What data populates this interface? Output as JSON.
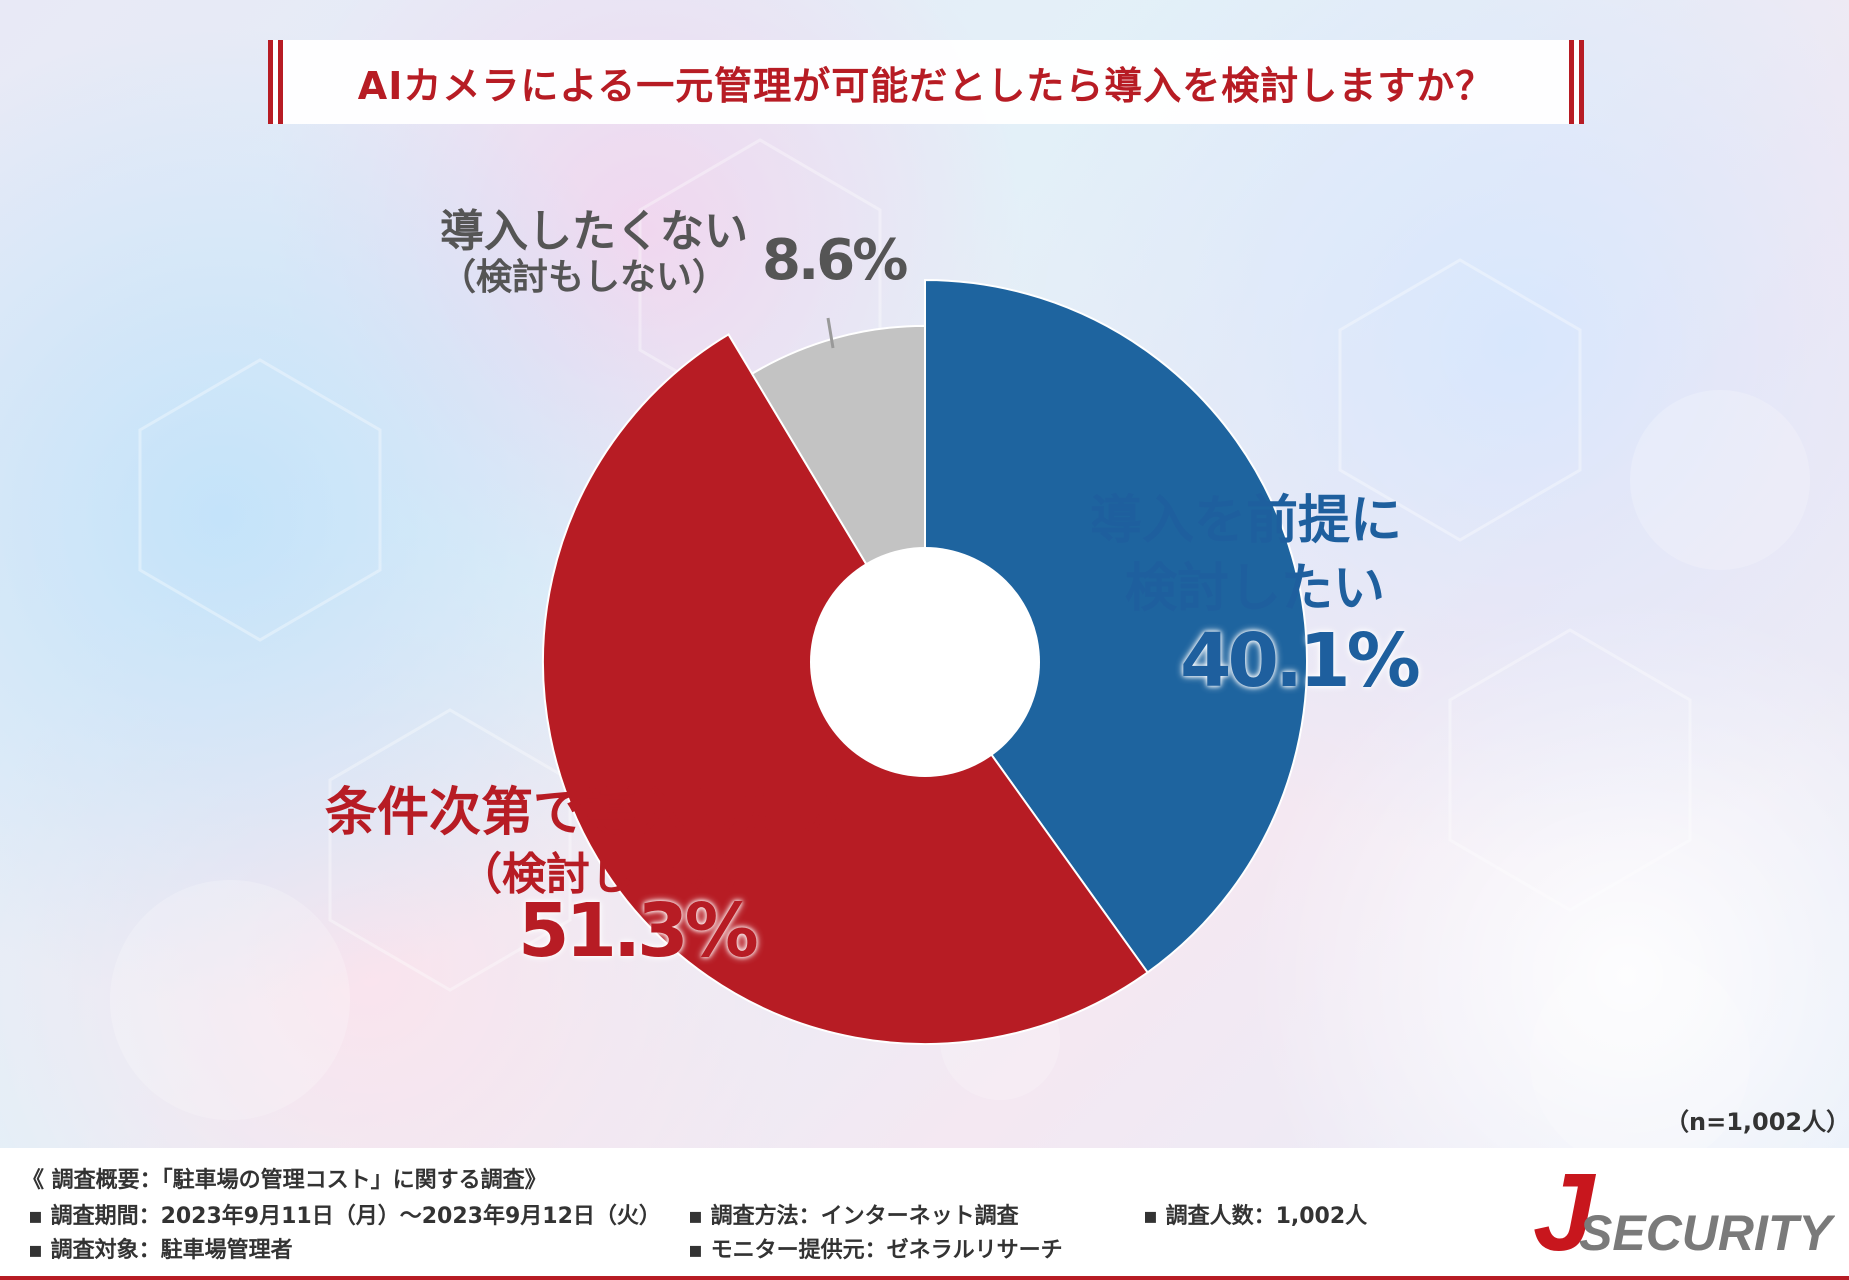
{
  "title": "AIカメラによる一元管理が可能だとしたら導入を検討しますか？",
  "chart_data": {
    "type": "pie",
    "donut": true,
    "categories": [
      "導入を前提に検討したい",
      "条件次第で導入したい（検討したい）",
      "導入したくない（検討もしない）"
    ],
    "values": [
      40.1,
      51.3,
      8.6
    ],
    "colors": [
      "#1e649f",
      "#b71c24",
      "#c3c3c3"
    ],
    "start_angle_deg": 0,
    "direction": "clockwise"
  },
  "labels": {
    "no_line1": "導入したくない",
    "no_line2": "（検討もしない）",
    "no_pct": "8.6%",
    "pre_line1": "導入を前提に",
    "pre_line2": "検討したい",
    "pre_pct": "40.1%",
    "cond_line1": "条件次第で導入したい",
    "cond_line2": "（検討したい）",
    "cond_pct": "51.3%"
  },
  "sample_size": "（n=1,002人）",
  "footer": {
    "heading": "《 調査概要：「駐車場の管理コスト」に関する調査》",
    "period": "▪ 調査期間：2023年9月11日（月）～2023年9月12日（火）",
    "target": "▪ 調査対象：駐車場管理者",
    "method": "▪ 調査方法：インターネット調査",
    "monitor": "▪ モニター提供元：ゼネラルリサーチ",
    "count": "▪ 調査人数：1,002人"
  },
  "logo": {
    "letter": "J",
    "text": "SECURITY"
  }
}
